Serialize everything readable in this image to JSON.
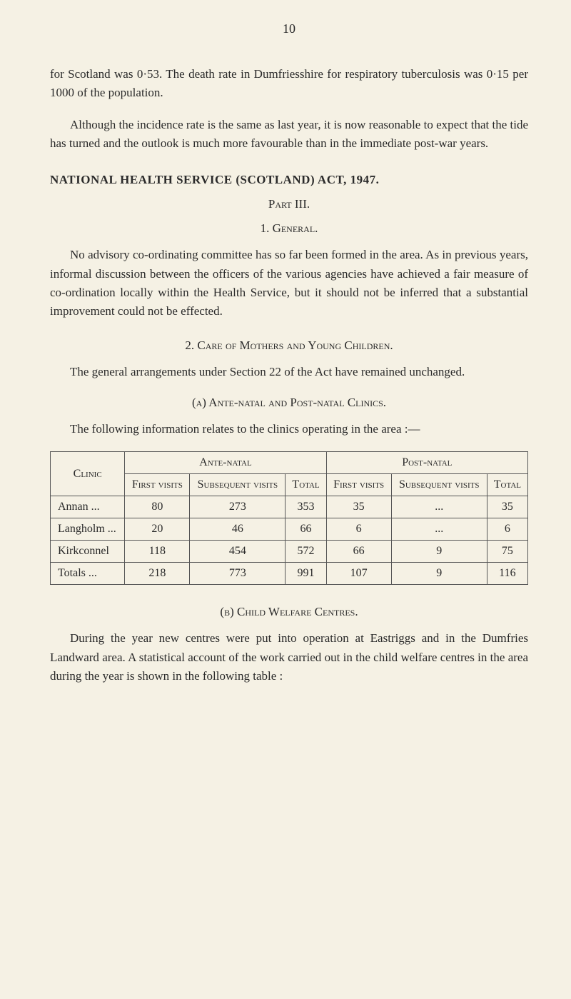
{
  "page_number": "10",
  "paragraphs": {
    "p1": "for Scotland was 0·53. The death rate in Dumfriesshire for respiratory tuberculosis was 0·15 per 1000 of the population.",
    "p2": "Although the incidence rate is the same as last year, it is now reasonable to expect that the tide has turned and the outlook is much more favourable than in the immediate post-war years.",
    "p3": "No advisory co-ordinating committee has so far been formed in the area. As in previous years, informal discussion between the officers of the various agencies have achieved a fair measure of co-ordination locally within the Health Service, but it should not be inferred that a substantial improvement could not be effected.",
    "p4": "The general arrangements under Section 22 of the Act have remained unchanged.",
    "p5": "The following information relates to the clinics operating in the area :—",
    "p6": "During the year new centres were put into operation at Eastriggs and in the Dumfries Landward area. A statistical account of the work carried out in the child welfare centres in the area during the year is shown in the following table :"
  },
  "headings": {
    "h1": "NATIONAL HEALTH SERVICE (SCOTLAND) ACT, 1947.",
    "part": "Part III.",
    "general": "1. General.",
    "care": "2. Care of Mothers and Young Children.",
    "sub_a": "(a) Ante-natal and Post-natal Clinics.",
    "sub_b": "(b) Child Welfare Centres."
  },
  "table": {
    "col_clinic": "Clinic",
    "group_ante": "Ante-natal",
    "group_post": "Post-natal",
    "col_first": "First visits",
    "col_subseq": "Subsequent visits",
    "col_total": "Total",
    "rows": [
      {
        "clinic": "Annan       ...",
        "a_first": "80",
        "a_sub": "273",
        "a_total": "353",
        "p_first": "35",
        "p_sub": "...",
        "p_total": "35"
      },
      {
        "clinic": "Langholm ...",
        "a_first": "20",
        "a_sub": "46",
        "a_total": "66",
        "p_first": "6",
        "p_sub": "...",
        "p_total": "6"
      },
      {
        "clinic": "Kirkconnel",
        "a_first": "118",
        "a_sub": "454",
        "a_total": "572",
        "p_first": "66",
        "p_sub": "9",
        "p_total": "75"
      },
      {
        "clinic": "Totals       ...",
        "a_first": "218",
        "a_sub": "773",
        "a_total": "991",
        "p_first": "107",
        "p_sub": "9",
        "p_total": "116"
      }
    ]
  }
}
